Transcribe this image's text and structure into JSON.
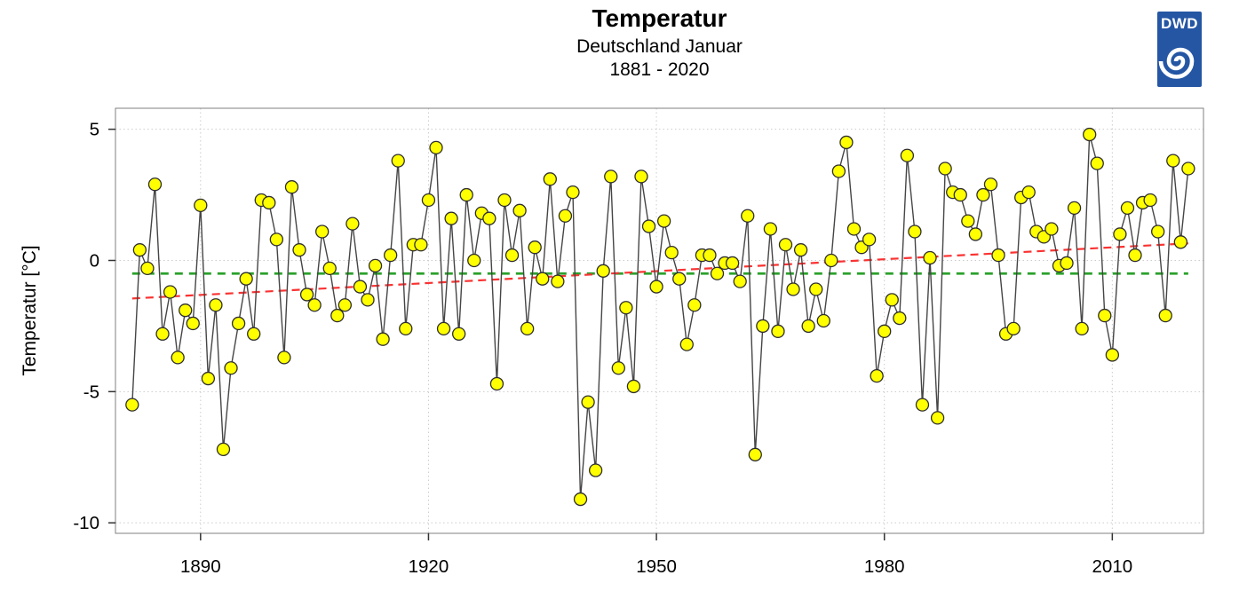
{
  "header": {
    "title": "Temperatur",
    "subtitle": "Deutschland Januar",
    "period": "1881 - 2020"
  },
  "logo": {
    "label": "DWD",
    "background": "#2456a4"
  },
  "chart_data": {
    "type": "line",
    "title": "Temperatur",
    "subtitle": "Deutschland Januar",
    "period": "1881 - 2020",
    "ylabel": "Temperatur [°C]",
    "xlabel": "",
    "xlim": [
      1878.8,
      2022.0
    ],
    "ylim": [
      -10.4,
      5.8
    ],
    "x_ticks": [
      1890,
      1920,
      1950,
      1980,
      2010
    ],
    "y_ticks": [
      5,
      0,
      -5,
      -10
    ],
    "grid": "dotted",
    "legend_position": "none",
    "years": [
      1881,
      1882,
      1883,
      1884,
      1885,
      1886,
      1887,
      1888,
      1889,
      1890,
      1891,
      1892,
      1893,
      1894,
      1895,
      1896,
      1897,
      1898,
      1899,
      1900,
      1901,
      1902,
      1903,
      1904,
      1905,
      1906,
      1907,
      1908,
      1909,
      1910,
      1911,
      1912,
      1913,
      1914,
      1915,
      1916,
      1917,
      1918,
      1919,
      1920,
      1921,
      1922,
      1923,
      1924,
      1925,
      1926,
      1927,
      1928,
      1929,
      1930,
      1931,
      1932,
      1933,
      1934,
      1935,
      1936,
      1937,
      1938,
      1939,
      1940,
      1941,
      1942,
      1943,
      1944,
      1945,
      1946,
      1947,
      1948,
      1949,
      1950,
      1951,
      1952,
      1953,
      1954,
      1955,
      1956,
      1957,
      1958,
      1959,
      1960,
      1961,
      1962,
      1963,
      1964,
      1965,
      1966,
      1967,
      1968,
      1969,
      1970,
      1971,
      1972,
      1973,
      1974,
      1975,
      1976,
      1977,
      1978,
      1979,
      1980,
      1981,
      1982,
      1983,
      1984,
      1985,
      1986,
      1987,
      1988,
      1989,
      1990,
      1991,
      1992,
      1993,
      1994,
      1995,
      1996,
      1997,
      1998,
      1999,
      2000,
      2001,
      2002,
      2003,
      2004,
      2005,
      2006,
      2007,
      2008,
      2009,
      2010,
      2011,
      2012,
      2013,
      2014,
      2015,
      2016,
      2017,
      2018,
      2019,
      2020
    ],
    "values": [
      -5.5,
      0.4,
      -0.3,
      2.9,
      -2.8,
      -1.2,
      -3.7,
      -1.9,
      -2.4,
      2.1,
      -4.5,
      -1.7,
      -7.2,
      -4.1,
      -2.4,
      -0.7,
      -2.8,
      2.3,
      2.2,
      0.8,
      -3.7,
      2.8,
      0.4,
      -1.3,
      -1.7,
      1.1,
      -0.3,
      -2.1,
      -1.7,
      1.4,
      -1.0,
      -1.5,
      -0.2,
      -3.0,
      0.2,
      3.8,
      -2.6,
      0.6,
      0.6,
      2.3,
      4.3,
      -2.6,
      1.6,
      -2.8,
      2.5,
      0.0,
      1.8,
      1.6,
      -4.7,
      2.3,
      0.2,
      1.9,
      -2.6,
      0.5,
      -0.7,
      3.1,
      -0.8,
      1.7,
      2.6,
      -9.1,
      -5.4,
      -8.0,
      -0.4,
      3.2,
      -4.1,
      -1.8,
      -4.8,
      3.2,
      1.3,
      -1.0,
      1.5,
      0.3,
      -0.7,
      -3.2,
      -1.7,
      0.2,
      0.2,
      -0.5,
      -0.1,
      -0.1,
      -0.8,
      1.7,
      -7.4,
      -2.5,
      1.2,
      -2.7,
      0.6,
      -1.1,
      0.4,
      -2.5,
      -1.1,
      -2.3,
      0.0,
      3.4,
      4.5,
      1.2,
      0.5,
      0.8,
      -4.4,
      -2.7,
      -1.5,
      -2.2,
      4.0,
      1.1,
      -5.5,
      0.1,
      -6.0,
      3.5,
      2.6,
      2.5,
      1.5,
      1.0,
      2.5,
      2.9,
      0.2,
      -2.8,
      -2.6,
      2.4,
      2.6,
      1.1,
      0.9,
      1.2,
      -0.2,
      -0.1,
      2.0,
      -2.6,
      4.8,
      3.7,
      -2.1,
      -3.6,
      1.0,
      2.0,
      0.2,
      2.2,
      2.3,
      1.1,
      -2.1,
      3.8,
      0.7,
      3.5
    ],
    "series_style": {
      "point_fill": "#ffff00",
      "point_stroke": "#2e2e2e",
      "line_color": "#454545",
      "point_radius": 7
    },
    "mean_line": {
      "value": -0.5,
      "color": "#2aa12a",
      "style": "dashed"
    },
    "trend_line": {
      "x": [
        1881,
        2020
      ],
      "y": [
        -1.45,
        0.65
      ],
      "color": "#fa3232",
      "style": "dashed"
    },
    "grid_color": "#cccccc",
    "frame_color": "#808080"
  }
}
